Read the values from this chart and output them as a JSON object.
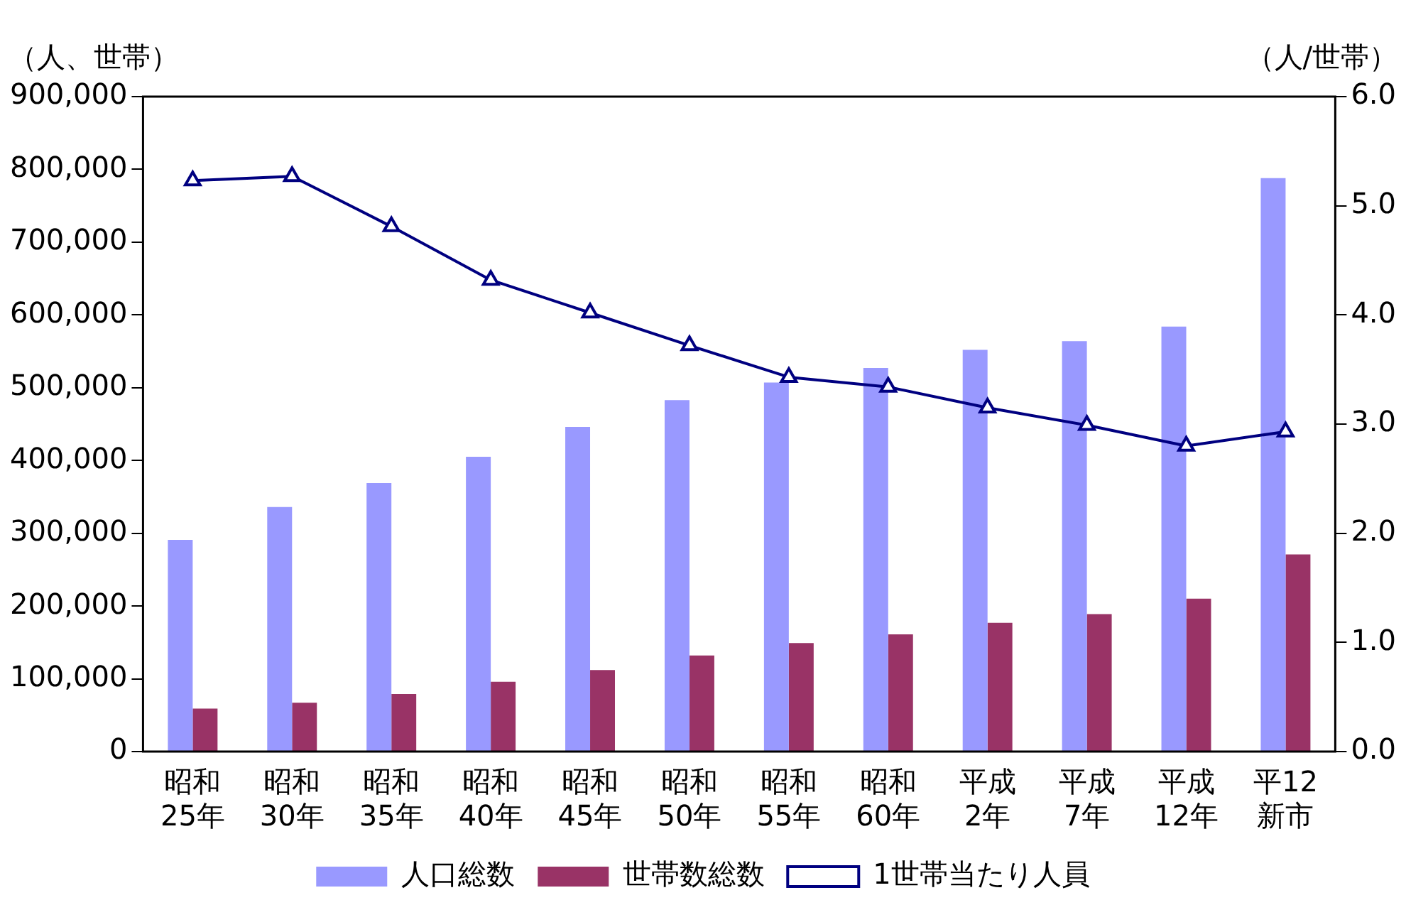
{
  "chart_data": {
    "type": "bar",
    "ylabel": "（人、世帯）",
    "y2label": "（人/世帯）",
    "categories": [
      "昭和\n25年",
      "昭和\n30年",
      "昭和\n35年",
      "昭和\n40年",
      "昭和\n45年",
      "昭和\n50年",
      "昭和\n55年",
      "昭和\n60年",
      "平成\n2年",
      "平成\n7年",
      "平成\n12年",
      "平12\n新市"
    ],
    "series": [
      {
        "name": "人口総数",
        "color": "#9999ff",
        "values": [
          291000,
          336000,
          369000,
          405000,
          446000,
          483000,
          507000,
          527000,
          552000,
          564000,
          584000,
          788000
        ]
      },
      {
        "name": "世帯数総数",
        "color": "#993366",
        "values": [
          59000,
          67000,
          79000,
          96000,
          112000,
          132000,
          149000,
          161000,
          177000,
          189000,
          210000,
          271000
        ]
      },
      {
        "name": "1世帯当たり人員",
        "type": "line",
        "axis": "y2",
        "color": "#000080",
        "marker": "triangle",
        "values": [
          5.23,
          5.27,
          4.81,
          4.32,
          4.02,
          3.72,
          3.43,
          3.34,
          3.15,
          2.99,
          2.8,
          2.93
        ]
      }
    ],
    "ylim": [
      0,
      900000
    ],
    "yticks": [
      {
        "value": 0,
        "label": "0"
      },
      {
        "value": 100000,
        "label": "100,000"
      },
      {
        "value": 200000,
        "label": "200,000"
      },
      {
        "value": 300000,
        "label": "300,000"
      },
      {
        "value": 400000,
        "label": "400,000"
      },
      {
        "value": 500000,
        "label": "500,000"
      },
      {
        "value": 600000,
        "label": "600,000"
      },
      {
        "value": 700000,
        "label": "700,000"
      },
      {
        "value": 800000,
        "label": "800,000"
      },
      {
        "value": 900000,
        "label": "900,000"
      }
    ],
    "y2lim": [
      0,
      6
    ],
    "y2ticks": [
      {
        "value": 0,
        "label": "0.0"
      },
      {
        "value": 1,
        "label": "1.0"
      },
      {
        "value": 2,
        "label": "2.0"
      },
      {
        "value": 3,
        "label": "3.0"
      },
      {
        "value": 4,
        "label": "4.0"
      },
      {
        "value": 5,
        "label": "5.0"
      },
      {
        "value": 6,
        "label": "6.0"
      }
    ],
    "grid": false,
    "legend": "bottom"
  }
}
